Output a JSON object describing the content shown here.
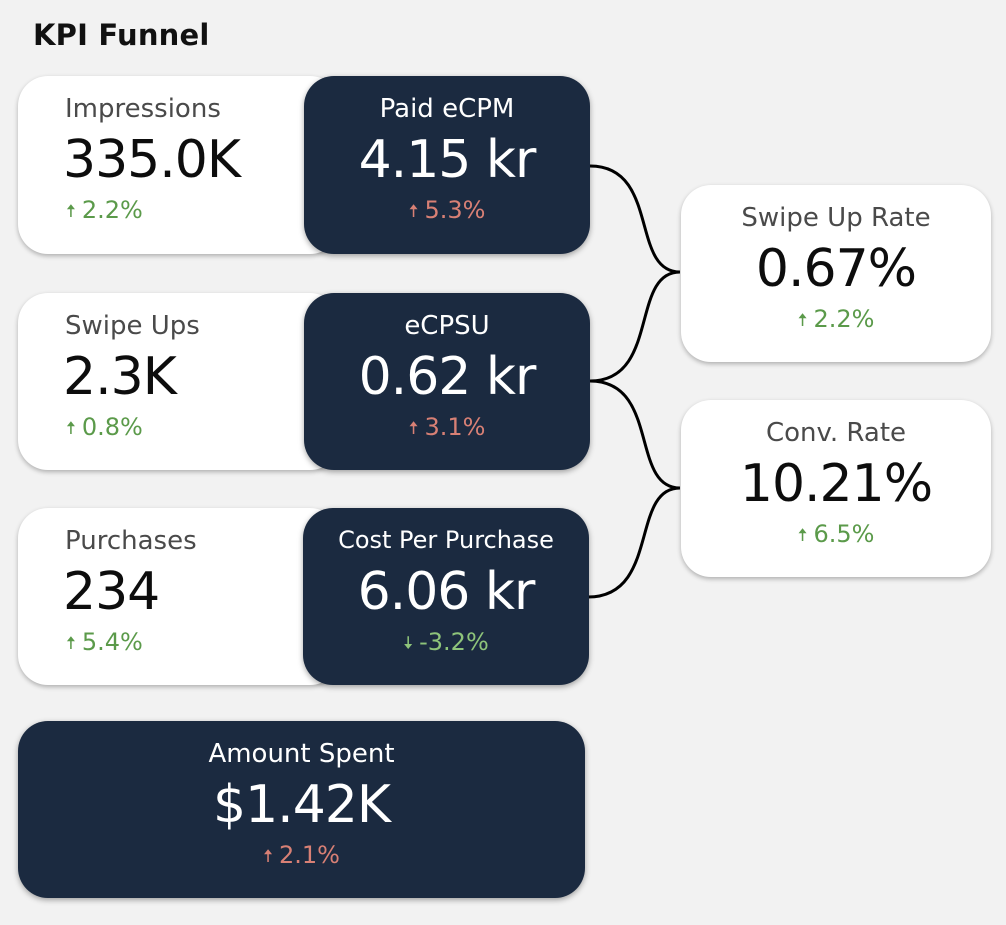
{
  "title": "KPI Funnel",
  "colors": {
    "navy": "#1b2a40",
    "positive": "#5b9a4a",
    "negative": "#d88075",
    "positive_light": "#8ec47a"
  },
  "rows": [
    {
      "left": {
        "name": "Impressions",
        "value": "335.0K",
        "change": "2.2%",
        "arrow": "up-arrow-icon",
        "tone": "up-good"
      },
      "right": {
        "name": "Paid eCPM",
        "value": "4.15 kr",
        "change": "5.3%",
        "arrow": "up-arrow-icon",
        "tone": "up-bad"
      }
    },
    {
      "left": {
        "name": "Swipe Ups",
        "value": "2.3K",
        "change": "0.8%",
        "arrow": "up-arrow-icon",
        "tone": "up-good"
      },
      "right": {
        "name": "eCPSU",
        "value": "0.62 kr",
        "change": "3.1%",
        "arrow": "up-arrow-icon",
        "tone": "up-bad"
      }
    },
    {
      "left": {
        "name": "Purchases",
        "value": "234",
        "change": "5.4%",
        "arrow": "up-arrow-icon",
        "tone": "up-good"
      },
      "right": {
        "name": "Cost Per Purchase",
        "value": "6.06 kr",
        "change": "-3.2%",
        "arrow": "down-arrow-icon",
        "tone": "down-good"
      }
    }
  ],
  "rates": [
    {
      "name": "Swipe Up Rate",
      "value": "0.67%",
      "change": "2.2%",
      "arrow": "up-arrow-icon",
      "tone": "up-good"
    },
    {
      "name": "Conv. Rate",
      "value": "10.21%",
      "change": "6.5%",
      "arrow": "up-arrow-icon",
      "tone": "up-good"
    }
  ],
  "spend": {
    "name": "Amount Spent",
    "value": "$1.42K",
    "change": "2.1%",
    "arrow": "up-arrow-icon",
    "tone": "up-bad"
  }
}
